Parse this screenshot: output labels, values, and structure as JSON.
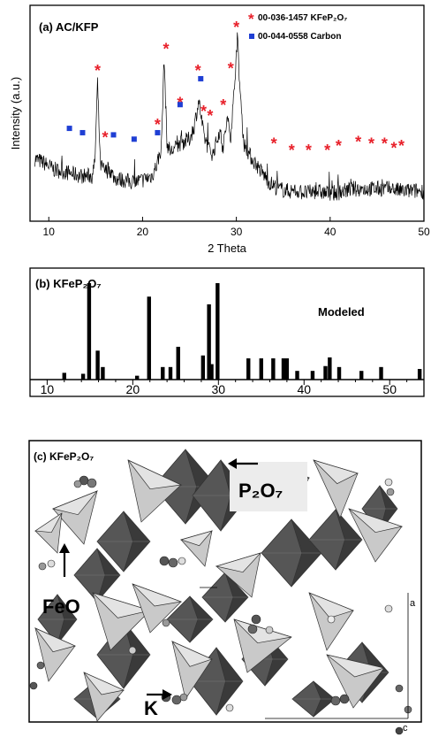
{
  "chart_data": [
    {
      "panel": "(a)",
      "type": "line",
      "title": "AC/KFP",
      "xlabel": "2 Theta",
      "ylabel": "Intensity (a.u.)",
      "xlim": [
        8,
        50
      ],
      "xticks": [
        10,
        20,
        30,
        40,
        50
      ],
      "grid": false,
      "legend_position": "top-right",
      "legend": [
        {
          "marker": "*",
          "label": "00-036-1457 KFeP₂O₇",
          "color": "#e8202a"
        },
        {
          "marker": "■",
          "label": "00-044-0558 Carbon",
          "color": "#1f3fd4"
        }
      ],
      "series": [
        {
          "profile": [
            [
              8.5,
              0.29
            ],
            [
              9.5,
              0.27
            ],
            [
              10.5,
              0.24
            ],
            [
              11.5,
              0.23
            ],
            [
              12.5,
              0.22
            ],
            [
              13.5,
              0.21
            ],
            [
              14.5,
              0.21
            ],
            [
              14.9,
              0.26
            ],
            [
              15.2,
              0.64
            ],
            [
              15.5,
              0.26
            ],
            [
              16.0,
              0.23
            ],
            [
              16.5,
              0.24
            ],
            [
              17.0,
              0.2
            ],
            [
              18.0,
              0.19
            ],
            [
              19.0,
              0.18
            ],
            [
              20.0,
              0.19
            ],
            [
              21.0,
              0.21
            ],
            [
              21.5,
              0.26
            ],
            [
              22.0,
              0.34
            ],
            [
              22.3,
              0.76
            ],
            [
              22.6,
              0.36
            ],
            [
              23.0,
              0.32
            ],
            [
              24.0,
              0.36
            ],
            [
              25.0,
              0.38
            ],
            [
              25.5,
              0.44
            ],
            [
              26.0,
              0.56
            ],
            [
              26.5,
              0.4
            ],
            [
              27.0,
              0.34
            ],
            [
              27.5,
              0.31
            ],
            [
              28.2,
              0.42
            ],
            [
              28.6,
              0.34
            ],
            [
              29.0,
              0.47
            ],
            [
              29.4,
              0.4
            ],
            [
              29.8,
              0.62
            ],
            [
              30.1,
              0.86
            ],
            [
              30.4,
              0.6
            ],
            [
              30.8,
              0.36
            ],
            [
              31.5,
              0.3
            ],
            [
              32.5,
              0.24
            ],
            [
              33.5,
              0.18
            ],
            [
              34.5,
              0.15
            ],
            [
              35.5,
              0.14
            ],
            [
              36.5,
              0.14
            ],
            [
              37.5,
              0.13
            ],
            [
              38.5,
              0.14
            ],
            [
              39.5,
              0.13
            ],
            [
              40.5,
              0.13
            ],
            [
              41.5,
              0.14
            ],
            [
              42.5,
              0.15
            ],
            [
              43.5,
              0.15
            ],
            [
              44.5,
              0.15
            ],
            [
              45.5,
              0.15
            ],
            [
              46.5,
              0.15
            ],
            [
              47.5,
              0.14
            ],
            [
              48.5,
              0.14
            ],
            [
              50.0,
              0.14
            ]
          ]
        }
      ],
      "kfp_markers": [
        [
          15.2,
          0.71
        ],
        [
          16.0,
          0.4
        ],
        [
          21.6,
          0.46
        ],
        [
          22.5,
          0.81
        ],
        [
          24.0,
          0.56
        ],
        [
          25.9,
          0.71
        ],
        [
          26.5,
          0.52
        ],
        [
          27.2,
          0.5
        ],
        [
          28.6,
          0.55
        ],
        [
          29.4,
          0.72
        ],
        [
          30.0,
          0.91
        ],
        [
          34.0,
          0.37
        ],
        [
          35.9,
          0.34
        ],
        [
          37.7,
          0.34
        ],
        [
          39.7,
          0.34
        ],
        [
          40.9,
          0.36
        ],
        [
          43.0,
          0.38
        ],
        [
          44.4,
          0.37
        ],
        [
          45.8,
          0.37
        ],
        [
          46.8,
          0.35
        ],
        [
          47.6,
          0.36
        ]
      ],
      "carbon_markers": [
        [
          12.2,
          0.43
        ],
        [
          13.6,
          0.41
        ],
        [
          16.9,
          0.4
        ],
        [
          19.1,
          0.38
        ],
        [
          21.6,
          0.41
        ],
        [
          24.0,
          0.54
        ],
        [
          26.2,
          0.66
        ]
      ]
    },
    {
      "panel": "(b)",
      "type": "bar",
      "title": "KFeP₂O₇",
      "annotation": "Modeled",
      "xlim": [
        8,
        54
      ],
      "xticks": [
        10,
        20,
        30,
        40,
        50
      ],
      "ylim": [
        0,
        100
      ],
      "x": [
        12.0,
        14.2,
        14.9,
        15.9,
        16.5,
        20.5,
        21.9,
        23.5,
        24.4,
        25.3,
        28.2,
        28.9,
        29.2,
        29.9,
        33.5,
        35.0,
        36.4,
        37.6,
        38.0,
        39.2,
        41.0,
        42.5,
        43.0,
        44.1,
        46.7,
        49.0,
        53.5
      ],
      "values": [
        7,
        6,
        100,
        30,
        13,
        4,
        86,
        13,
        13,
        34,
        25,
        78,
        16,
        100,
        22,
        22,
        22,
        22,
        22,
        9,
        9,
        14,
        23,
        13,
        9,
        13,
        11
      ]
    }
  ],
  "figure_c": {
    "panel_label": "(c)",
    "title": "KFeP₂O₇",
    "labels": {
      "p2o7": "P₂O₇",
      "feo": "FeO",
      "k": "K",
      "axis_a": "a",
      "axis_c": "c"
    }
  }
}
